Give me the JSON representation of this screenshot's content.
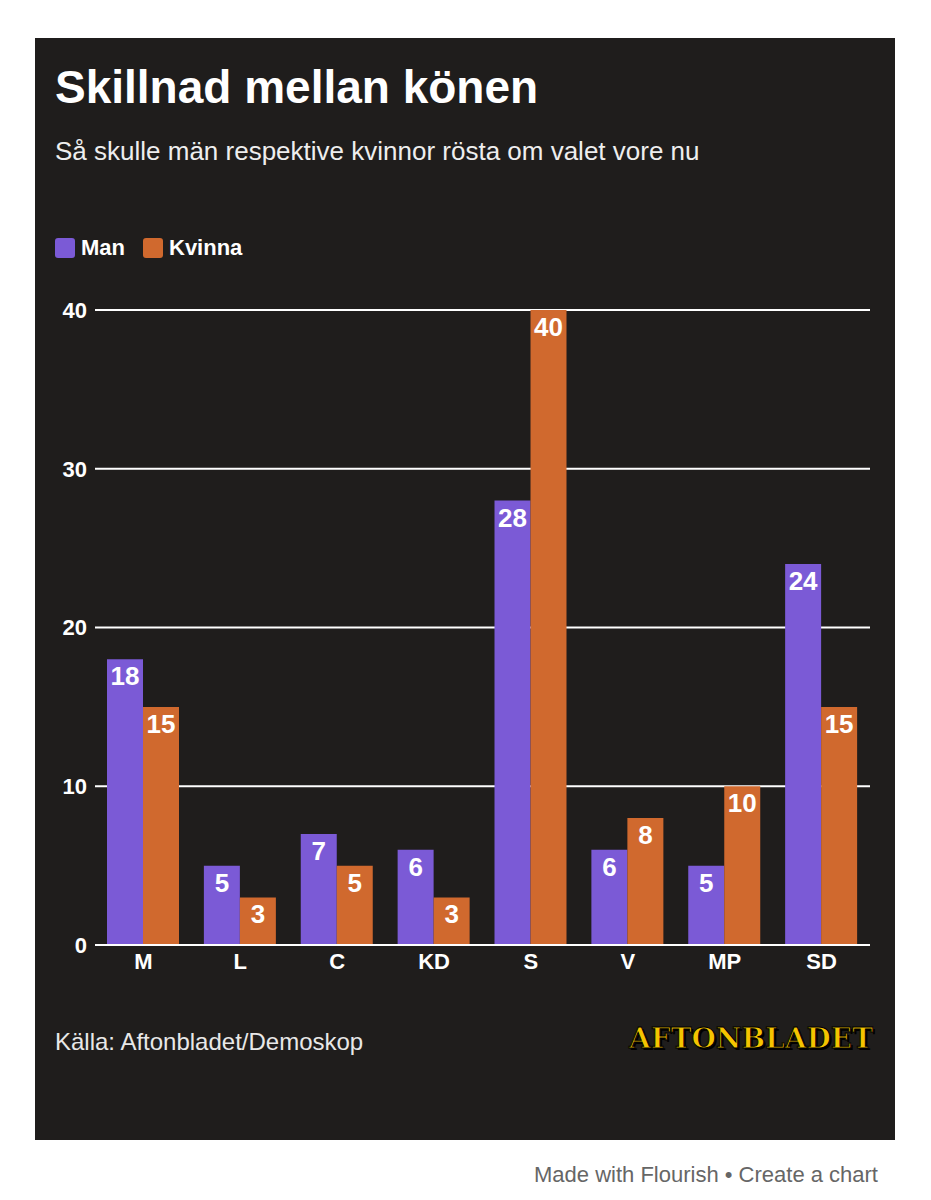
{
  "chart_data": {
    "type": "bar",
    "title": "Skillnad mellan könen",
    "subtitle": "Så skulle män respektive kvinnor rösta om valet vore nu",
    "source": "Källa: Aftonbladet/Demoskop",
    "annotations": [
      "AFTONBLADET",
      "Made with Flourish • Create a chart"
    ],
    "categories": [
      "M",
      "L",
      "C",
      "KD",
      "S",
      "V",
      "MP",
      "SD"
    ],
    "series": [
      {
        "name": "Man",
        "color": "#7b5ad6",
        "values": [
          18,
          5,
          7,
          6,
          28,
          6,
          5,
          24
        ]
      },
      {
        "name": "Kvinna",
        "color": "#d0692e",
        "values": [
          15,
          3,
          5,
          3,
          40,
          8,
          10,
          15
        ]
      }
    ],
    "ylim": [
      0,
      40
    ],
    "yticks": [
      0,
      10,
      20,
      30,
      40
    ],
    "grid": true,
    "legend": "top-left",
    "data_labels": true
  }
}
